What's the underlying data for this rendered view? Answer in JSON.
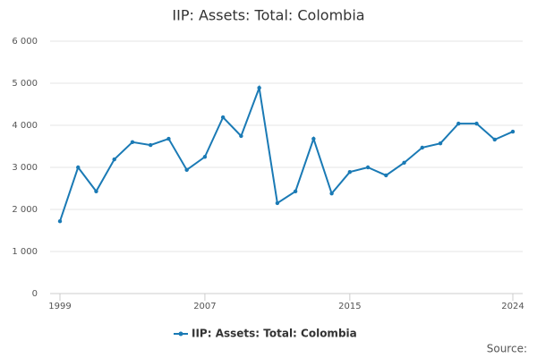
{
  "chart_data": {
    "type": "line",
    "title": "IIP: Assets: Total: Colombia",
    "x": [
      1999,
      2000,
      2001,
      2002,
      2003,
      2004,
      2005,
      2006,
      2007,
      2008,
      2009,
      2010,
      2011,
      2012,
      2013,
      2014,
      2015,
      2016,
      2017,
      2018,
      2019,
      2020,
      2021,
      2022,
      2023,
      2024
    ],
    "series": [
      {
        "name": "IIP: Assets: Total: Colombia",
        "color": "#1a7ab5",
        "values": [
          1720,
          3000,
          2430,
          3190,
          3600,
          3530,
          3680,
          2940,
          3250,
          4190,
          3745,
          4890,
          2150,
          2430,
          3680,
          2380,
          2890,
          3000,
          2810,
          3110,
          3470,
          3570,
          4040,
          4040,
          3660,
          3850
        ]
      }
    ],
    "xlim": [
      1999,
      2024
    ],
    "xticks": [
      1999,
      2007,
      2015,
      2024
    ],
    "ylim": [
      0,
      6000
    ],
    "yticks": [
      0,
      {
        "value": 1000,
        "label": "1 000"
      },
      {
        "value": 2000,
        "label": "2 000"
      },
      {
        "value": 3000,
        "label": "3 000"
      },
      {
        "value": 4000,
        "label": "4 000"
      },
      {
        "value": 5000,
        "label": "5 000"
      },
      {
        "value": 6000,
        "label": "6 000"
      }
    ],
    "grid": true,
    "legend": "bottom",
    "source": "Source:"
  }
}
